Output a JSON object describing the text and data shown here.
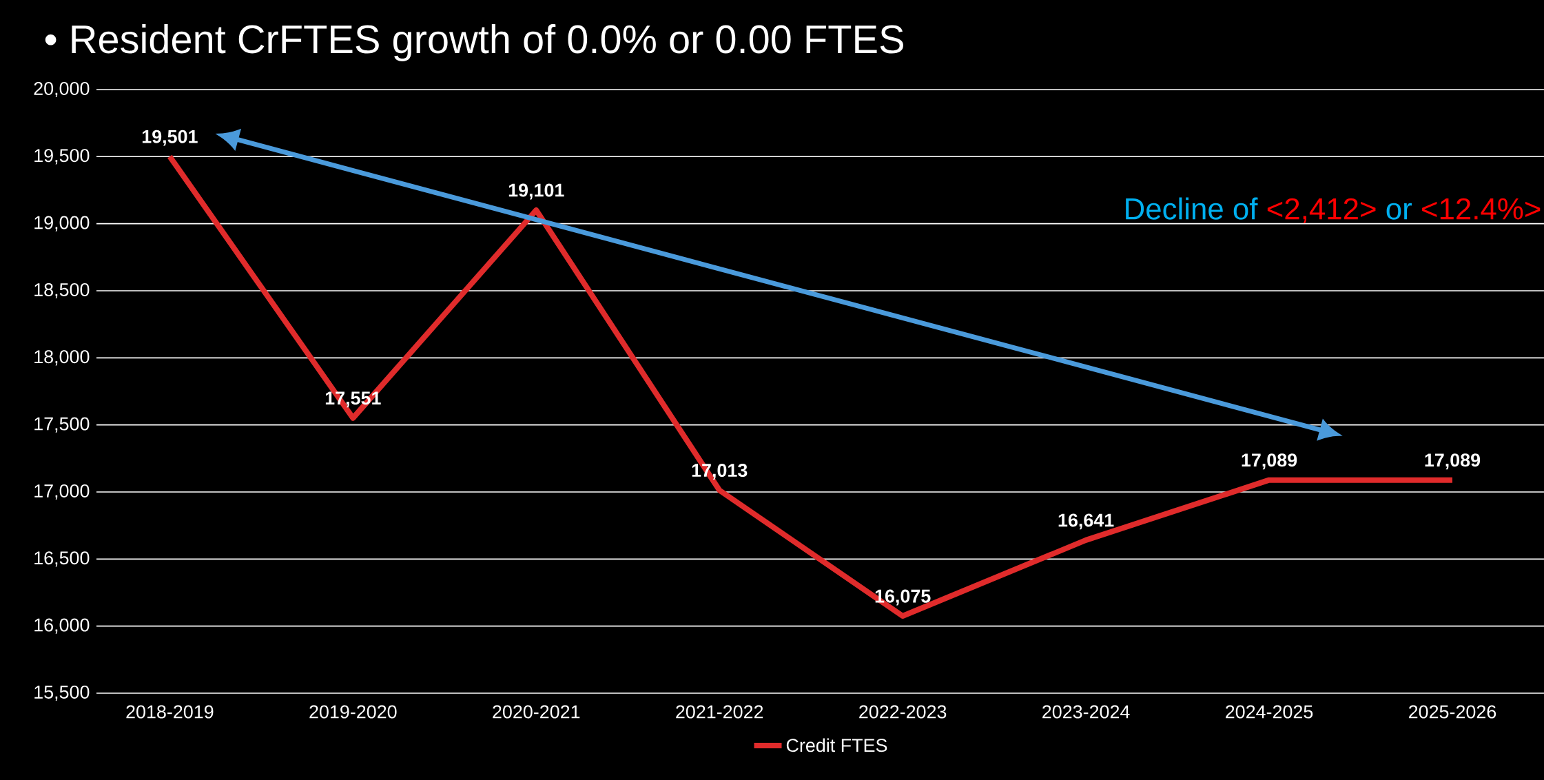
{
  "chart_data": {
    "type": "line",
    "title": "• Resident CrFTES growth of 0.0% or 0.00 FTES",
    "categories": [
      "2018-2019",
      "2019-2020",
      "2020-2021",
      "2021-2022",
      "2022-2023",
      "2023-2024",
      "2024-2025",
      "2025-2026"
    ],
    "series": [
      {
        "name": "Credit FTES",
        "color": "#e02b2b",
        "values": [
          19501,
          17551,
          19101,
          17013,
          16075,
          16641,
          17089,
          17089
        ],
        "value_labels": [
          "19,501",
          "17,551",
          "19,101",
          "17,013",
          "16,075",
          "16,641",
          "17,089",
          "17,089"
        ]
      }
    ],
    "ylim": [
      15500,
      20000
    ],
    "yticks": [
      {
        "value": 15500,
        "label": "15,500"
      },
      {
        "value": 16000,
        "label": "16,000"
      },
      {
        "value": 16500,
        "label": "16,500"
      },
      {
        "value": 17000,
        "label": "17,000"
      },
      {
        "value": 17500,
        "label": "17,500"
      },
      {
        "value": 18000,
        "label": "18,000"
      },
      {
        "value": 18500,
        "label": "18,500"
      },
      {
        "value": 19000,
        "label": "19,000"
      },
      {
        "value": 19500,
        "label": "19,500"
      },
      {
        "value": 20000,
        "label": "20,000"
      }
    ],
    "annotations": [
      "Decline of",
      "<2,412>",
      "or",
      "<12.4%>"
    ],
    "grid": "y",
    "legend": "bottom",
    "line_style": "solid"
  }
}
